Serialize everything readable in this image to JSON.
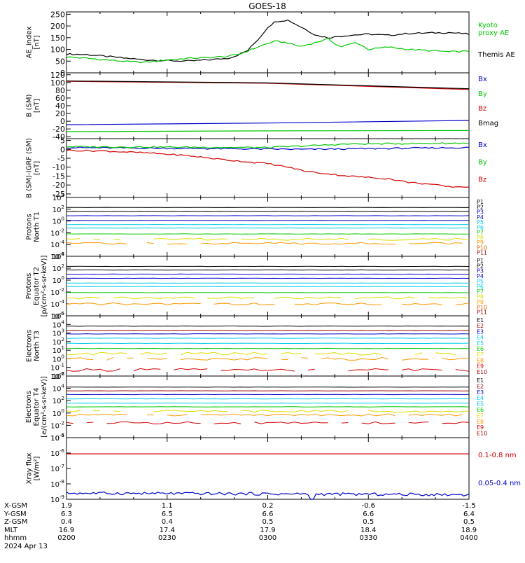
{
  "title": "GOES-18",
  "colors": {
    "black": "#000000",
    "red": "#d40000",
    "darkred": "#990000",
    "green": "#00c800",
    "blue": "#0000cc",
    "navy": "#00008b",
    "cyan": "#00ccee",
    "lime": "#66ee66",
    "yellow": "#dddd00",
    "orange": "#ff9900",
    "dkorange": "#dd6600"
  },
  "chart_data": [
    {
      "type": "line",
      "ylabel": "AE_index\n[nT]",
      "yticks": [
        "0",
        "50",
        "100",
        "150",
        "200",
        "250"
      ],
      "ylim": [
        0,
        260
      ],
      "legend": [
        {
          "name": "Kyoto\nproxy AE",
          "color": "#00c800"
        },
        {
          "name": "Themis AE",
          "color": "#000000"
        }
      ],
      "series": [
        {
          "name": "Themis AE",
          "color": "#000000",
          "x": [
            0,
            0.05,
            0.1,
            0.15,
            0.2,
            0.25,
            0.3,
            0.35,
            0.4,
            0.42,
            0.45,
            0.48,
            0.5,
            0.52,
            0.55,
            0.6,
            0.62,
            0.65,
            0.7,
            0.75,
            0.8,
            0.85,
            0.9,
            0.95,
            1
          ],
          "y": [
            80,
            78,
            70,
            62,
            55,
            52,
            50,
            55,
            62,
            72,
            95,
            150,
            195,
            220,
            225,
            180,
            160,
            150,
            160,
            165,
            160,
            168,
            170,
            172,
            165
          ]
        },
        {
          "name": "Kyoto proxy AE",
          "color": "#00c800",
          "x": [
            0,
            0.05,
            0.1,
            0.15,
            0.2,
            0.25,
            0.3,
            0.35,
            0.4,
            0.43,
            0.46,
            0.49,
            0.52,
            0.55,
            0.58,
            0.62,
            0.65,
            0.68,
            0.72,
            0.75,
            0.8,
            0.85,
            0.9,
            0.95,
            1
          ],
          "y": [
            68,
            62,
            55,
            48,
            45,
            55,
            62,
            65,
            70,
            80,
            100,
            120,
            135,
            128,
            112,
            130,
            145,
            110,
            130,
            100,
            110,
            100,
            95,
            90,
            92
          ]
        }
      ]
    },
    {
      "type": "line",
      "ylabel": "B (SM)\n[nT]",
      "yticks": [
        "-40",
        "-20",
        "0",
        "20",
        "40",
        "60",
        "80",
        "100",
        "120"
      ],
      "ylim": [
        -45,
        125
      ],
      "legend": [
        {
          "name": "Bx",
          "color": "#0000cc"
        },
        {
          "name": "By",
          "color": "#00c800"
        },
        {
          "name": "Bz",
          "color": "#d40000"
        },
        {
          "name": "Bmag",
          "color": "#000000"
        }
      ],
      "series": [
        {
          "name": "Bz",
          "color": "#d40000",
          "x": [
            0,
            0.5,
            1
          ],
          "y": [
            103,
            98,
            82
          ]
        },
        {
          "name": "Bmag",
          "color": "#000000",
          "x": [
            0,
            0.5,
            1
          ],
          "y": [
            104,
            99,
            84
          ]
        },
        {
          "name": "Bx",
          "color": "#0000cc",
          "x": [
            0,
            0.4,
            0.7,
            1
          ],
          "y": [
            -9,
            -6,
            -2,
            2
          ]
        },
        {
          "name": "By",
          "color": "#00c800",
          "x": [
            0,
            0.5,
            1
          ],
          "y": [
            -27,
            -25,
            -24
          ]
        }
      ]
    },
    {
      "type": "line",
      "ylabel": "B (SM)-IGRF (SM)\n[nT]",
      "yticks": [
        "-25",
        "-20",
        "-15",
        "-10",
        "-5",
        "0",
        "5"
      ],
      "ylim": [
        -27,
        6
      ],
      "legend": [
        {
          "name": "Bx",
          "color": "#0000cc"
        },
        {
          "name": "By",
          "color": "#00c800"
        },
        {
          "name": "Bz",
          "color": "#d40000"
        }
      ],
      "series": [
        {
          "name": "Bx",
          "color": "#0000cc",
          "x": [
            0,
            0.3,
            0.6,
            1
          ],
          "y": [
            1,
            0.5,
            0,
            1
          ]
        },
        {
          "name": "By",
          "color": "#00c800",
          "x": [
            0,
            0.3,
            0.5,
            0.7,
            1
          ],
          "y": [
            1.5,
            1.2,
            1,
            3,
            3.5
          ]
        },
        {
          "name": "Bz",
          "color": "#d40000",
          "x": [
            0,
            0.1,
            0.2,
            0.3,
            0.4,
            0.5,
            0.55,
            0.6,
            0.7,
            0.8,
            0.85,
            0.9,
            0.95,
            1
          ],
          "y": [
            -0.5,
            -1,
            -2,
            -3.5,
            -6,
            -8,
            -10,
            -12.5,
            -15,
            -16.5,
            -18.5,
            -19.5,
            -21,
            -21
          ]
        }
      ]
    },
    {
      "type": "line",
      "log": true,
      "ylabel": "Protons\nNorth T1",
      "ylim": [
        -6,
        4
      ],
      "decades": [
        -6,
        -4,
        -2,
        0,
        2,
        4
      ],
      "channels": [
        "P1",
        "P2",
        "P3",
        "P4",
        "P5",
        "P6",
        "P7",
        "P8",
        "P9",
        "P10",
        "P11"
      ],
      "levels": [
        2.3,
        1.6,
        0.9,
        0.1,
        -0.6,
        -1.2,
        -2.2,
        -3.1,
        -3.8,
        -7,
        -7
      ],
      "channel_colors": [
        "#000000",
        "#000000",
        "#0000cc",
        "#0000cc",
        "#00ccee",
        "#00ccee",
        "#00c800",
        "#dddd00",
        "#ff9900",
        "#dd6600",
        "#990000"
      ]
    },
    {
      "type": "line",
      "log": true,
      "ylabel": "Protons\nEquator T2\n[p/(cm²-s-sr-keV)]",
      "ylim": [
        -6,
        4
      ],
      "decades": [
        -6,
        -4,
        -2,
        0,
        2,
        4
      ],
      "channels": [
        "P1",
        "P2",
        "P3",
        "P4",
        "P5",
        "P6",
        "P7",
        "P8",
        "P9",
        "P10",
        "P11"
      ],
      "levels": [
        2.3,
        1.7,
        1.0,
        0.3,
        -0.5,
        -1.1,
        -2.1,
        -3.0,
        -4.0,
        -7,
        -7
      ],
      "channel_colors": [
        "#000000",
        "#000000",
        "#0000cc",
        "#0000cc",
        "#00ccee",
        "#00ccee",
        "#00c800",
        "#dddd00",
        "#ff9900",
        "#dd6600",
        "#990000"
      ]
    },
    {
      "type": "line",
      "log": true,
      "ylabel": "Electrons\nNorth T3",
      "ylim": [
        -2,
        5
      ],
      "decades": [
        -2,
        -1,
        0,
        1,
        2,
        3,
        4,
        5
      ],
      "channels": [
        "E1",
        "E2",
        "E3",
        "E4",
        "E5",
        "E6",
        "E7",
        "E8",
        "E9",
        "E10"
      ],
      "levels": [
        3.8,
        3.3,
        2.9,
        2.4,
        1.8,
        1.2,
        0.6,
        0.0,
        -1.3,
        -3
      ],
      "channel_colors": [
        "#000000",
        "#990000",
        "#0000cc",
        "#00ccee",
        "#00ccee",
        "#00c800",
        "#dddd00",
        "#ff9900",
        "#d40000",
        "#990000"
      ]
    },
    {
      "type": "line",
      "log": true,
      "ylabel": "Electrons\nEquator T4\n[e/(cm²-s-sr-keV)]",
      "ylim": [
        -4,
        6
      ],
      "decades": [
        -4,
        -2,
        0,
        2,
        4,
        6
      ],
      "channels": [
        "E1",
        "E2",
        "E3",
        "E4",
        "E5",
        "E6",
        "E7",
        "E8",
        "E9",
        "E10"
      ],
      "levels": [
        4.2,
        3.6,
        3.0,
        2.3,
        1.6,
        1.0,
        0.3,
        -0.3,
        -1.6,
        -5
      ],
      "channel_colors": [
        "#000000",
        "#990000",
        "#0000cc",
        "#00ccee",
        "#00ccee",
        "#00c800",
        "#dddd00",
        "#ff9900",
        "#d40000",
        "#990000"
      ]
    },
    {
      "type": "line",
      "log": true,
      "ylabel": "Xray flux\n[W/m²]",
      "ylim": [
        -9,
        -5
      ],
      "decades": [
        -9,
        -8,
        -7,
        -6,
        -5
      ],
      "legend": [
        {
          "name": "0.1-0.8 nm",
          "color": "#d40000"
        },
        {
          "name": "0.05-0.4 nm",
          "color": "#0000cc"
        }
      ],
      "series": [
        {
          "name": "0.1-0.8 nm",
          "color": "#d40000",
          "x": [
            0,
            1
          ],
          "y": [
            -6.05,
            -6.05
          ]
        },
        {
          "name": "0.05-0.4 nm",
          "color": "#0000cc",
          "x": [
            0,
            1
          ],
          "y": [
            -8.6,
            -8.7
          ]
        }
      ]
    }
  ],
  "xaxis": {
    "rows": [
      {
        "label": "X-GSM",
        "values": [
          "1.9",
          "1.1",
          "0.2",
          "-0.6",
          "-1.5"
        ]
      },
      {
        "label": "Y-GSM",
        "values": [
          "6.3",
          "6.5",
          "6.6",
          "6.6",
          "6.4"
        ]
      },
      {
        "label": "Z-GSM",
        "values": [
          "0.4",
          "0.4",
          "0.5",
          "0.5",
          "0.5"
        ]
      },
      {
        "label": "MLT",
        "values": [
          "16.9",
          "17.4",
          "17.9",
          "18.4",
          "18.9"
        ]
      },
      {
        "label": "hhmm",
        "values": [
          "0200",
          "0230",
          "0300",
          "0330",
          "0400"
        ]
      }
    ],
    "date": "2024 Apr 13"
  }
}
